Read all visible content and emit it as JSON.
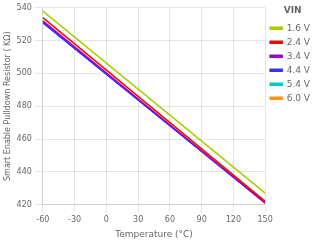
{
  "chart_data": {
    "type": "line",
    "title": "",
    "xlabel": "Temperature (°C)",
    "ylabel": "Smart Enable Pulldown Resistor ( KΩ)",
    "legend_title": "VIN",
    "x": [
      -60,
      150
    ],
    "series": [
      {
        "name": "1.6 V",
        "color": "#AACC00",
        "values": [
          538,
          427
        ]
      },
      {
        "name": "2.4 V",
        "color": "#FF0000",
        "values": [
          534,
          422
        ]
      },
      {
        "name": "3.4 V",
        "color": "#9900CC",
        "values": [
          532,
          421
        ]
      },
      {
        "name": "4.4 V",
        "color": "#3333FF",
        "values": [
          531,
          421
        ]
      },
      {
        "name": "5.4 V",
        "color": "#00CCCC",
        "values": [
          531,
          421
        ]
      },
      {
        "name": "6.0 V",
        "color": "#FF9900",
        "values": [
          531,
          421
        ]
      }
    ],
    "xlim": [
      -60,
      150
    ],
    "xticks": [
      -60,
      -30,
      0,
      30,
      60,
      90,
      120,
      150
    ],
    "ylim": [
      420,
      540
    ],
    "yticks": [
      420,
      440,
      460,
      480,
      500,
      520,
      540
    ],
    "grid": true,
    "legend": "upper right"
  }
}
